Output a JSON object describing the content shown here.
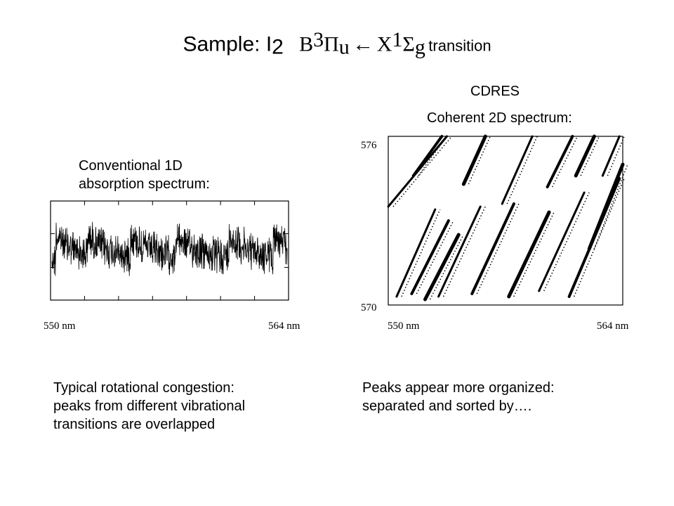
{
  "title": {
    "prefix": "Sample: I",
    "prefix_sub": "2",
    "state_B": "B",
    "state_B_sup": "3",
    "pi": "Π",
    "pi_sub": "u",
    "arrow": "←",
    "state_X": "X",
    "state_X_sup": "1",
    "sigma": "Σ",
    "sigma_sub": "g",
    "suffix": "transition"
  },
  "left_panel": {
    "heading_line1": "Conventional 1D",
    "heading_line2": "absorption spectrum:",
    "caption_line1": "Typical rotational congestion:",
    "caption_line2": "peaks from different vibrational",
    "caption_line3": "transitions are overlapped"
  },
  "right_panel": {
    "method": "CDRES",
    "heading": "Coherent 2D spectrum:",
    "caption_line1": "Peaks appear more organized:",
    "caption_line2": "separated and sorted by…."
  },
  "chart_data": [
    {
      "type": "line",
      "x_tick_labels": [
        "550 nm",
        "564 nm"
      ],
      "xlim": [
        550,
        564
      ],
      "x_unit": "nm",
      "y_tick_labels": [],
      "envelope_peaks_nm": [
        550.3,
        552.2,
        554.7,
        557.4,
        560.5,
        563.1
      ],
      "noise": "dense rotational fine structure"
    },
    {
      "type": "scatter",
      "x_tick_labels": [
        "550 nm",
        "564 nm"
      ],
      "y_tick_labels": [
        "576",
        "570"
      ],
      "xlim": [
        550,
        564
      ],
      "ylim": [
        570,
        576
      ],
      "diagonal_streaks": [
        [
          550.5,
          570.3,
          552.8,
          573.4
        ],
        [
          551.4,
          570.4,
          553.6,
          573.0
        ],
        [
          552.2,
          570.2,
          554.2,
          572.5
        ],
        [
          553.0,
          570.3,
          555.5,
          573.5
        ],
        [
          555.0,
          570.4,
          557.5,
          573.6
        ],
        [
          557.2,
          570.3,
          559.6,
          573.3
        ],
        [
          559.0,
          570.5,
          561.7,
          574.0
        ],
        [
          560.8,
          570.3,
          563.8,
          574.5
        ],
        [
          562.0,
          572.0,
          564.0,
          575.0
        ],
        [
          550.0,
          573.5,
          553.5,
          576.0
        ],
        [
          551.5,
          574.6,
          553.2,
          576.0
        ],
        [
          554.5,
          574.3,
          555.8,
          576.0
        ],
        [
          556.8,
          573.6,
          558.6,
          576.0
        ],
        [
          559.5,
          574.2,
          561.0,
          576.0
        ],
        [
          561.2,
          574.6,
          562.3,
          576.0
        ],
        [
          562.8,
          574.6,
          563.8,
          576.0
        ]
      ]
    }
  ]
}
